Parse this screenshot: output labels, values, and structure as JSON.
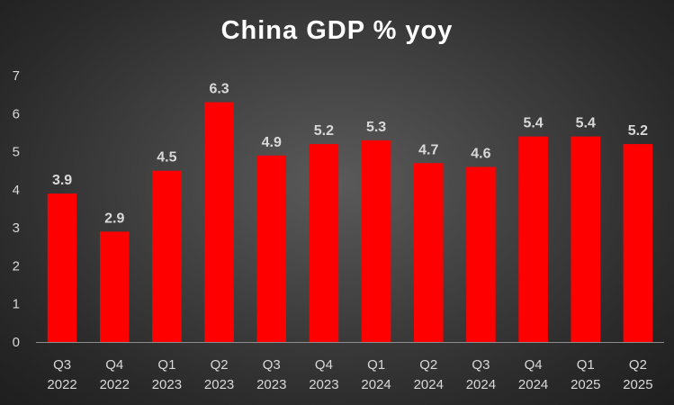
{
  "chart_data": {
    "type": "bar",
    "title": "China GDP % yoy",
    "categories": [
      [
        "Q3",
        "2022"
      ],
      [
        "Q4",
        "2022"
      ],
      [
        "Q1",
        "2023"
      ],
      [
        "Q2",
        "2023"
      ],
      [
        "Q3",
        "2023"
      ],
      [
        "Q4",
        "2023"
      ],
      [
        "Q1",
        "2024"
      ],
      [
        "Q2",
        "2024"
      ],
      [
        "Q3",
        "2024"
      ],
      [
        "Q4",
        "2024"
      ],
      [
        "Q1",
        "2025"
      ],
      [
        "Q2",
        "2025"
      ]
    ],
    "values": [
      3.9,
      2.9,
      4.5,
      6.3,
      4.9,
      5.2,
      5.3,
      4.7,
      4.6,
      5.4,
      5.4,
      5.2
    ],
    "data_labels": [
      "3.9",
      "2.9",
      "4.5",
      "6.3",
      "4.9",
      "5.2",
      "5.3",
      "4.7",
      "4.6",
      "5.4",
      "5.4",
      "5.2"
    ],
    "ylim": [
      0,
      7
    ],
    "yticks": [
      "0",
      "1",
      "2",
      "3",
      "4",
      "5",
      "6",
      "7"
    ],
    "xlabel": "",
    "ylabel": "",
    "grid": false,
    "legend": "none",
    "bar_color": "#ff0000",
    "text_color": "#d9d9d9"
  }
}
